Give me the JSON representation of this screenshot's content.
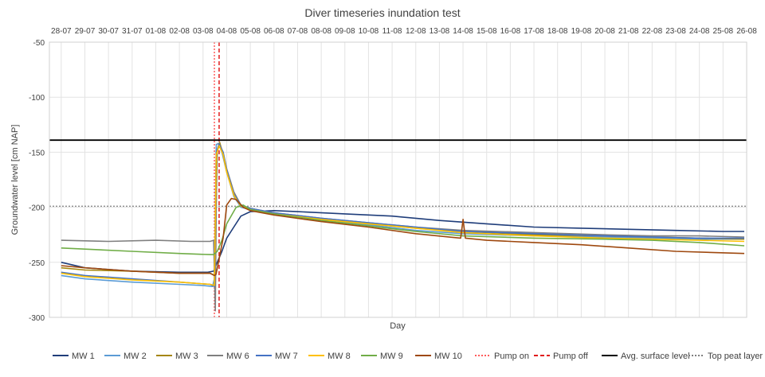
{
  "chart_data": {
    "type": "line",
    "title": "Diver timeseries inundation test",
    "xlabel": "Day",
    "ylabel": "Groundwater level [cm NAP]",
    "ylim": [
      -300,
      -50
    ],
    "yticks": [
      -50,
      -100,
      -150,
      -200,
      -250,
      -300
    ],
    "grid": true,
    "legend_position": "bottom",
    "categories": [
      "28-07",
      "29-07",
      "30-07",
      "31-07",
      "01-08",
      "02-08",
      "03-08",
      "04-08",
      "05-08",
      "06-08",
      "07-08",
      "08-08",
      "09-08",
      "10-08",
      "11-08",
      "12-08",
      "13-08",
      "14-08",
      "15-08",
      "16-08",
      "17-08",
      "18-08",
      "19-08",
      "20-08",
      "21-08",
      "22-08",
      "23-08",
      "24-08",
      "25-08",
      "26-08"
    ],
    "series": [
      {
        "name": "MW 1",
        "color": "#1f3d7a",
        "style": "solid",
        "points": [
          [
            0,
            -250
          ],
          [
            1,
            -255
          ],
          [
            3,
            -258
          ],
          [
            5,
            -259
          ],
          [
            6.2,
            -259
          ],
          [
            6.45,
            -258
          ],
          [
            6.6,
            -250
          ],
          [
            6.8,
            -240
          ],
          [
            7.0,
            -228
          ],
          [
            7.3,
            -218
          ],
          [
            7.6,
            -208
          ],
          [
            8,
            -204
          ],
          [
            9,
            -203
          ],
          [
            10,
            -204
          ],
          [
            12,
            -206
          ],
          [
            14,
            -208
          ],
          [
            16,
            -212
          ],
          [
            18,
            -215
          ],
          [
            20,
            -218
          ],
          [
            22,
            -219
          ],
          [
            24,
            -220
          ],
          [
            26,
            -221
          ],
          [
            28,
            -222
          ],
          [
            28.9,
            -222
          ]
        ]
      },
      {
        "name": "MW 2",
        "color": "#5b9bd5",
        "style": "solid",
        "points": [
          [
            0,
            -262
          ],
          [
            1,
            -265
          ],
          [
            3,
            -268
          ],
          [
            5,
            -270
          ],
          [
            6,
            -271
          ],
          [
            6.4,
            -272
          ],
          [
            6.48,
            -265
          ],
          [
            6.56,
            -143
          ],
          [
            6.65,
            -142
          ],
          [
            6.8,
            -150
          ],
          [
            7,
            -168
          ],
          [
            7.3,
            -190
          ],
          [
            7.6,
            -200
          ],
          [
            8,
            -202
          ],
          [
            9,
            -206
          ],
          [
            11,
            -211
          ],
          [
            13,
            -216
          ],
          [
            15,
            -221
          ],
          [
            17,
            -224
          ],
          [
            20,
            -226
          ],
          [
            23,
            -227
          ],
          [
            25,
            -228
          ],
          [
            27,
            -229
          ],
          [
            28.9,
            -229
          ]
        ]
      },
      {
        "name": "MW 3",
        "color": "#a5860e",
        "style": "solid",
        "points": [
          [
            0,
            -255
          ],
          [
            1,
            -257
          ],
          [
            3,
            -258
          ],
          [
            5,
            -260
          ],
          [
            6.3,
            -260
          ],
          [
            6.5,
            -262
          ],
          [
            6.6,
            -150
          ],
          [
            6.7,
            -141
          ],
          [
            6.85,
            -152
          ],
          [
            7.0,
            -168
          ],
          [
            7.3,
            -188
          ],
          [
            7.6,
            -198
          ],
          [
            8,
            -201
          ],
          [
            9,
            -206
          ],
          [
            11,
            -211
          ],
          [
            13,
            -215
          ],
          [
            15,
            -219
          ],
          [
            17,
            -222
          ],
          [
            20,
            -225
          ],
          [
            23,
            -226
          ],
          [
            25,
            -227
          ],
          [
            27,
            -228
          ],
          [
            28.9,
            -229
          ]
        ]
      },
      {
        "name": "MW 6",
        "color": "#7f7f7f",
        "style": "solid",
        "points": [
          [
            0,
            -230
          ],
          [
            2,
            -231
          ],
          [
            4,
            -230
          ],
          [
            5.5,
            -231
          ],
          [
            6.3,
            -231
          ],
          [
            6.45,
            -230
          ],
          [
            6.52,
            -294
          ],
          [
            6.58,
            -150
          ],
          [
            6.68,
            -142
          ],
          [
            6.85,
            -150
          ],
          [
            7,
            -165
          ],
          [
            7.3,
            -186
          ],
          [
            7.6,
            -198
          ],
          [
            8,
            -201
          ],
          [
            9,
            -205
          ],
          [
            11,
            -210
          ],
          [
            13,
            -214
          ],
          [
            15,
            -218
          ],
          [
            17,
            -221
          ],
          [
            20,
            -223
          ],
          [
            23,
            -225
          ],
          [
            25,
            -226
          ],
          [
            27,
            -226
          ],
          [
            28.9,
            -227
          ]
        ]
      },
      {
        "name": "MW 7",
        "color": "#4472c4",
        "style": "solid",
        "points": [
          [
            0,
            -259
          ],
          [
            1,
            -262
          ],
          [
            3,
            -265
          ],
          [
            5,
            -268
          ],
          [
            6.3,
            -270
          ],
          [
            6.48,
            -272
          ],
          [
            6.56,
            -150
          ],
          [
            6.68,
            -143
          ],
          [
            6.85,
            -150
          ],
          [
            7,
            -166
          ],
          [
            7.3,
            -188
          ],
          [
            7.6,
            -198
          ],
          [
            8,
            -201
          ],
          [
            9,
            -205
          ],
          [
            11,
            -210
          ],
          [
            13,
            -214
          ],
          [
            15,
            -218
          ],
          [
            17,
            -222
          ],
          [
            20,
            -224
          ],
          [
            23,
            -226
          ],
          [
            25,
            -227
          ],
          [
            27,
            -228
          ],
          [
            28.9,
            -228
          ]
        ]
      },
      {
        "name": "MW 8",
        "color": "#ffc000",
        "style": "solid",
        "points": [
          [
            0,
            -260
          ],
          [
            1,
            -263
          ],
          [
            3,
            -266
          ],
          [
            5,
            -268
          ],
          [
            6.3,
            -270
          ],
          [
            6.48,
            -271
          ],
          [
            6.56,
            -152
          ],
          [
            6.68,
            -144
          ],
          [
            6.85,
            -152
          ],
          [
            7,
            -168
          ],
          [
            7.3,
            -189
          ],
          [
            7.6,
            -199
          ],
          [
            8,
            -202
          ],
          [
            9,
            -206
          ],
          [
            11,
            -211
          ],
          [
            13,
            -215
          ],
          [
            15,
            -219
          ],
          [
            17,
            -223
          ],
          [
            20,
            -226
          ],
          [
            23,
            -228
          ],
          [
            25,
            -229
          ],
          [
            27,
            -230
          ],
          [
            28.9,
            -231
          ]
        ]
      },
      {
        "name": "MW 9",
        "color": "#70ad47",
        "style": "solid",
        "points": [
          [
            0,
            -237
          ],
          [
            1,
            -238
          ],
          [
            3,
            -240
          ],
          [
            5,
            -242
          ],
          [
            6.3,
            -243
          ],
          [
            6.45,
            -243
          ],
          [
            6.6,
            -240
          ],
          [
            6.8,
            -230
          ],
          [
            7.0,
            -215
          ],
          [
            7.4,
            -200
          ],
          [
            7.7,
            -198
          ],
          [
            8,
            -202
          ],
          [
            9,
            -206
          ],
          [
            11,
            -212
          ],
          [
            13,
            -217
          ],
          [
            15,
            -222
          ],
          [
            17,
            -226
          ],
          [
            20,
            -228
          ],
          [
            23,
            -229
          ],
          [
            25,
            -230
          ],
          [
            27,
            -232
          ],
          [
            28.9,
            -235
          ]
        ]
      },
      {
        "name": "MW 10",
        "color": "#9e480e",
        "style": "solid",
        "points": [
          [
            0,
            -253
          ],
          [
            1,
            -255
          ],
          [
            3,
            -258
          ],
          [
            5,
            -260
          ],
          [
            6.3,
            -260
          ],
          [
            6.48,
            -262
          ],
          [
            6.55,
            -261
          ],
          [
            6.65,
            -250
          ],
          [
            6.85,
            -228
          ],
          [
            7.0,
            -198
          ],
          [
            7.2,
            -192
          ],
          [
            7.4,
            -193
          ],
          [
            7.7,
            -200
          ],
          [
            8,
            -203
          ],
          [
            9,
            -207
          ],
          [
            11,
            -213
          ],
          [
            13,
            -218
          ],
          [
            15,
            -224
          ],
          [
            16.9,
            -228
          ],
          [
            17,
            -211
          ],
          [
            17.1,
            -228
          ],
          [
            18,
            -230
          ],
          [
            20,
            -232
          ],
          [
            22,
            -234
          ],
          [
            24,
            -237
          ],
          [
            26,
            -240
          ],
          [
            28.9,
            -242
          ]
        ]
      },
      {
        "name": "Pump on",
        "color": "#ff5c5c",
        "style": "dotted",
        "x": 6.48
      },
      {
        "name": "Pump off",
        "color": "#e01b1b",
        "style": "dashed",
        "x": 6.68
      },
      {
        "name": "Avg. surface level",
        "color": "#000000",
        "style": "solid",
        "y": -139
      },
      {
        "name": "Top peat layer",
        "color": "#808080",
        "style": "dotted",
        "y": -199
      }
    ]
  }
}
